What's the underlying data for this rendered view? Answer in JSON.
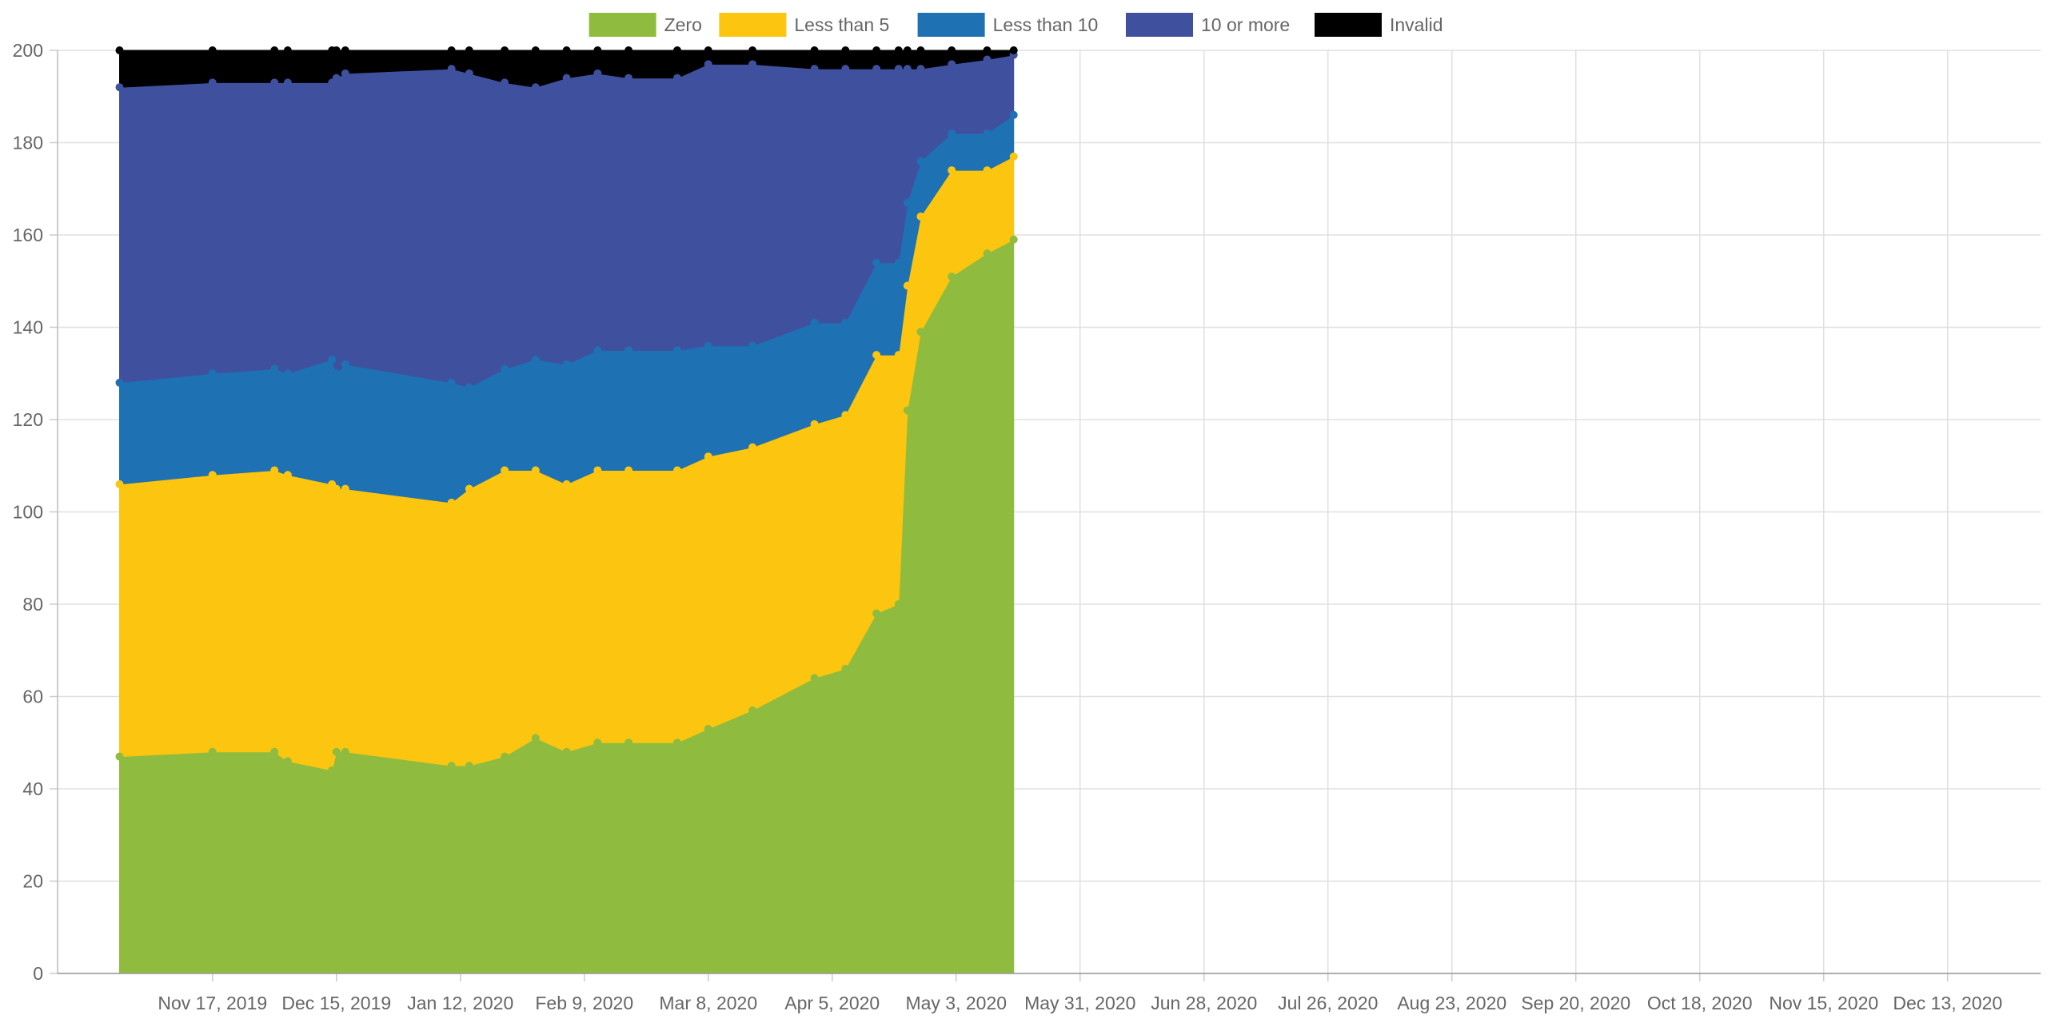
{
  "chart_data": {
    "type": "area",
    "stacked": true,
    "grid": true,
    "legend_position": "top-center",
    "ylim": [
      0,
      200
    ],
    "y_ticks": [
      0,
      20,
      40,
      60,
      80,
      100,
      120,
      140,
      160,
      180,
      200
    ],
    "x_range": [
      "2019-10-13",
      "2021-01-03"
    ],
    "x_ticks": [
      {
        "date": "2019-11-17",
        "label": "Nov 17, 2019"
      },
      {
        "date": "2019-12-15",
        "label": "Dec 15, 2019"
      },
      {
        "date": "2020-01-12",
        "label": "Jan 12, 2020"
      },
      {
        "date": "2020-02-09",
        "label": "Feb 9, 2020"
      },
      {
        "date": "2020-03-08",
        "label": "Mar 8, 2020"
      },
      {
        "date": "2020-04-05",
        "label": "Apr 5, 2020"
      },
      {
        "date": "2020-05-03",
        "label": "May 3, 2020"
      },
      {
        "date": "2020-05-31",
        "label": "May 31, 2020"
      },
      {
        "date": "2020-06-28",
        "label": "Jun 28, 2020"
      },
      {
        "date": "2020-07-26",
        "label": "Jul 26, 2020"
      },
      {
        "date": "2020-08-23",
        "label": "Aug 23, 2020"
      },
      {
        "date": "2020-09-20",
        "label": "Sep 20, 2020"
      },
      {
        "date": "2020-10-18",
        "label": "Oct 18, 2020"
      },
      {
        "date": "2020-11-15",
        "label": "Nov 15, 2020"
      },
      {
        "date": "2020-12-13",
        "label": "Dec 13, 2020"
      }
    ],
    "x": [
      "2019-10-27",
      "2019-11-17",
      "2019-12-01",
      "2019-12-04",
      "2019-12-14",
      "2019-12-15",
      "2019-12-17",
      "2020-01-10",
      "2020-01-14",
      "2020-01-22",
      "2020-01-29",
      "2020-02-05",
      "2020-02-12",
      "2020-02-19",
      "2020-03-01",
      "2020-03-08",
      "2020-03-18",
      "2020-04-01",
      "2020-04-08",
      "2020-04-15",
      "2020-04-20",
      "2020-04-22",
      "2020-04-25",
      "2020-05-02",
      "2020-05-10",
      "2020-05-16"
    ],
    "series": [
      {
        "name": "Zero",
        "color": "#8fbc3f",
        "values": [
          47,
          48,
          48,
          46,
          44,
          48,
          48,
          45,
          45,
          47,
          51,
          48,
          50,
          50,
          50,
          53,
          57,
          64,
          66,
          78,
          80,
          122,
          139,
          151,
          156,
          159
        ]
      },
      {
        "name": "Less than 5",
        "color": "#fcc50f",
        "values": [
          59,
          60,
          61,
          62,
          62,
          57,
          57,
          57,
          60,
          62,
          58,
          58,
          59,
          59,
          59,
          59,
          57,
          55,
          55,
          56,
          54,
          27,
          25,
          23,
          18,
          18
        ]
      },
      {
        "name": "Less than 10",
        "color": "#1e71b3",
        "values": [
          22,
          22,
          22,
          22,
          27,
          25,
          27,
          26,
          22,
          22,
          24,
          26,
          26,
          26,
          26,
          24,
          22,
          22,
          20,
          20,
          20,
          18,
          12,
          8,
          8,
          9
        ]
      },
      {
        "name": "10 or more",
        "color": "#3f519e",
        "values": [
          64,
          63,
          62,
          63,
          60,
          64,
          63,
          68,
          68,
          62,
          59,
          62,
          60,
          59,
          59,
          61,
          61,
          55,
          55,
          42,
          42,
          29,
          20,
          15,
          16,
          13
        ]
      },
      {
        "name": "Invalid",
        "color": "#000000",
        "values": [
          8,
          7,
          7,
          7,
          7,
          6,
          5,
          4,
          5,
          7,
          8,
          6,
          5,
          6,
          6,
          3,
          3,
          4,
          4,
          4,
          4,
          4,
          4,
          3,
          2,
          1
        ]
      }
    ]
  }
}
